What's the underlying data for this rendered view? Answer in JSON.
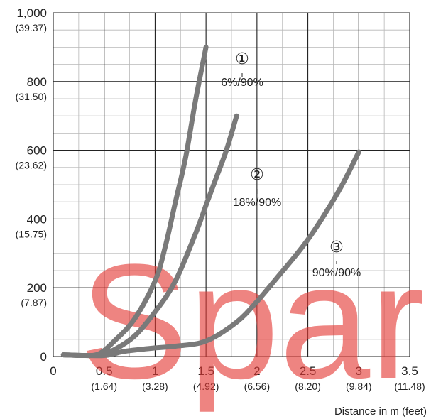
{
  "chart_data": {
    "type": "line",
    "title": "",
    "xlabel": "Distance in m (feet)",
    "ylabel": "",
    "xlim": [
      0,
      3.5
    ],
    "ylim": [
      0,
      1000
    ],
    "grid": true,
    "x_ticks": [
      {
        "value": 0,
        "label": "0",
        "sub": ""
      },
      {
        "value": 0.5,
        "label": "0.5",
        "sub": "(1.64)"
      },
      {
        "value": 1,
        "label": "1",
        "sub": "(3.28)"
      },
      {
        "value": 1.5,
        "label": "1.5",
        "sub": "(4.92)"
      },
      {
        "value": 2,
        "label": "2",
        "sub": "(6.56)"
      },
      {
        "value": 2.5,
        "label": "2.5",
        "sub": "(8.20)"
      },
      {
        "value": 3,
        "label": "3",
        "sub": "(9.84)"
      },
      {
        "value": 3.5,
        "label": "3.5",
        "sub": "(11.48)"
      }
    ],
    "y_ticks": [
      {
        "value": 0,
        "label": "0",
        "sub": ""
      },
      {
        "value": 200,
        "label": "200",
        "sub": "(7.87)"
      },
      {
        "value": 400,
        "label": "400",
        "sub": "(15.75)"
      },
      {
        "value": 600,
        "label": "600",
        "sub": "(23.62)"
      },
      {
        "value": 800,
        "label": "800",
        "sub": "(31.50)"
      },
      {
        "value": 1000,
        "label": "1,000",
        "sub": "(39.37)"
      }
    ],
    "series": [
      {
        "marker": "①",
        "name": "6%/90%",
        "color": "#7a7a7a",
        "x": [
          0.1,
          0.3,
          0.45,
          0.6,
          0.8,
          1.0,
          1.1,
          1.2,
          1.3,
          1.4,
          1.5
        ],
        "y": [
          5,
          3,
          8,
          45,
          110,
          220,
          320,
          450,
          580,
          750,
          900
        ]
      },
      {
        "marker": "②",
        "name": "18%/90%",
        "color": "#7a7a7a",
        "x": [
          0.1,
          0.3,
          0.45,
          0.6,
          0.8,
          1.0,
          1.2,
          1.4,
          1.5,
          1.6,
          1.7,
          1.8
        ],
        "y": [
          5,
          3,
          5,
          20,
          60,
          130,
          220,
          360,
          440,
          520,
          600,
          700
        ]
      },
      {
        "marker": "③",
        "name": "90%/90%",
        "color": "#7a7a7a",
        "x": [
          0.1,
          0.3,
          0.5,
          0.6,
          0.7,
          1.0,
          1.2,
          1.5,
          1.8,
          2.0,
          2.2,
          2.5,
          2.8,
          3.0
        ],
        "y": [
          5,
          3,
          3,
          8,
          15,
          25,
          30,
          45,
          100,
          160,
          230,
          340,
          480,
          595
        ]
      }
    ],
    "annotations": [
      {
        "marker": "①",
        "label": "6%/90%"
      },
      {
        "marker": "②",
        "label": "18%/90%"
      },
      {
        "marker": "③",
        "label": "90%/90%"
      }
    ],
    "watermark": "Spare"
  }
}
